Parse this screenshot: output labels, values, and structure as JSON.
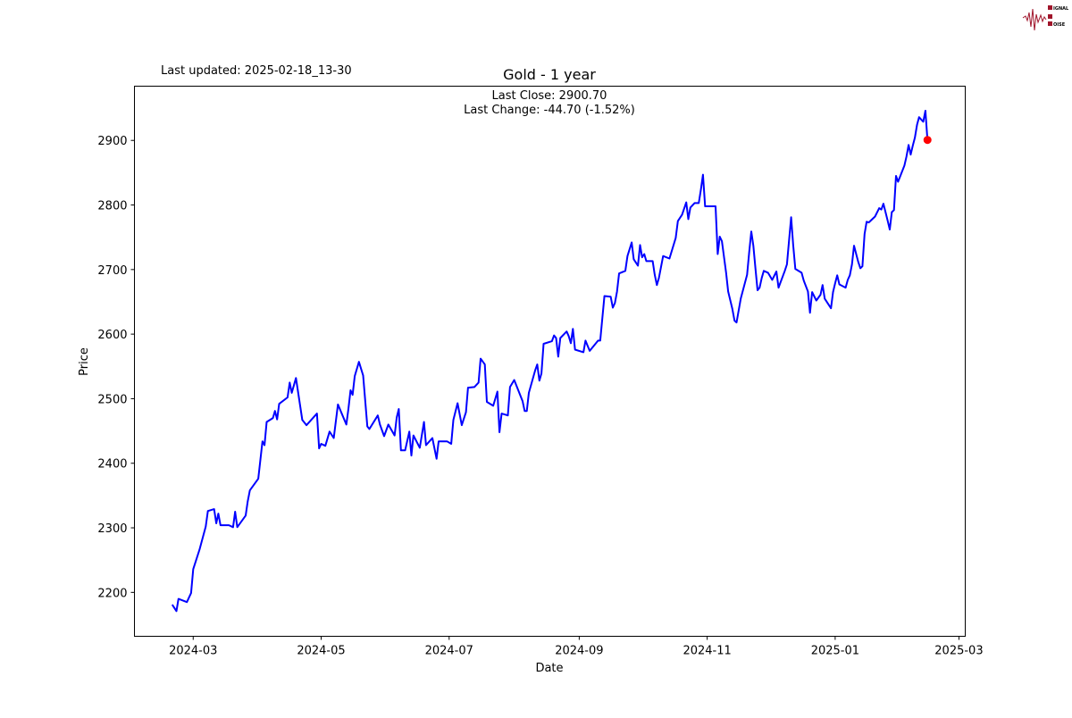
{
  "header": {
    "last_updated": "Last updated: 2025-02-18_13-30",
    "logo_text": "SIGNAL 2 NOISE"
  },
  "chart_data": {
    "type": "line",
    "title": "Gold - 1 year",
    "xlabel": "Date",
    "ylabel": "Price",
    "annotation": {
      "last_close": "Last Close: 2900.70",
      "last_change": "Last Change: -44.70 (-1.52%)"
    },
    "xlim": [
      "2024-02-02",
      "2025-03-04"
    ],
    "ylim": [
      2132,
      2984
    ],
    "x_ticks": [
      "2024-03",
      "2024-05",
      "2024-07",
      "2024-09",
      "2024-11",
      "2025-01",
      "2025-03"
    ],
    "y_ticks": [
      2200,
      2300,
      2400,
      2500,
      2600,
      2700,
      2800,
      2900
    ],
    "grid": false,
    "colors": {
      "line": "#0000ff",
      "last_point": "#ff0000"
    },
    "series": [
      {
        "x": [
          "2024-02-20",
          "2024-02-22",
          "2024-02-23",
          "2024-02-27",
          "2024-02-29",
          "2024-03-01",
          "2024-03-04",
          "2024-03-07",
          "2024-03-08",
          "2024-03-11",
          "2024-03-12",
          "2024-03-13",
          "2024-03-14",
          "2024-03-18",
          "2024-03-20",
          "2024-03-21",
          "2024-03-22",
          "2024-03-26",
          "2024-03-27",
          "2024-03-28",
          "2024-04-01",
          "2024-04-03",
          "2024-04-04",
          "2024-04-05",
          "2024-04-08",
          "2024-04-09",
          "2024-04-10",
          "2024-04-11",
          "2024-04-15",
          "2024-04-16",
          "2024-04-17",
          "2024-04-19",
          "2024-04-22",
          "2024-04-24",
          "2024-04-29",
          "2024-04-30",
          "2024-05-01",
          "2024-05-03",
          "2024-05-05",
          "2024-05-07",
          "2024-05-09",
          "2024-05-13",
          "2024-05-14",
          "2024-05-15",
          "2024-05-16",
          "2024-05-17",
          "2024-05-19",
          "2024-05-21",
          "2024-05-23",
          "2024-05-24",
          "2024-05-28",
          "2024-05-29",
          "2024-05-31",
          "2024-06-02",
          "2024-06-05",
          "2024-06-06",
          "2024-06-07",
          "2024-06-08",
          "2024-06-10",
          "2024-06-12",
          "2024-06-13",
          "2024-06-14",
          "2024-06-17",
          "2024-06-19",
          "2024-06-20",
          "2024-06-23",
          "2024-06-25",
          "2024-06-26",
          "2024-06-30",
          "2024-07-02",
          "2024-07-03",
          "2024-07-05",
          "2024-07-07",
          "2024-07-09",
          "2024-07-10",
          "2024-07-13",
          "2024-07-15",
          "2024-07-16",
          "2024-07-18",
          "2024-07-19",
          "2024-07-22",
          "2024-07-24",
          "2024-07-25",
          "2024-07-26",
          "2024-07-29",
          "2024-07-30",
          "2024-08-01",
          "2024-08-05",
          "2024-08-06",
          "2024-08-07",
          "2024-08-08",
          "2024-08-11",
          "2024-08-12",
          "2024-08-13",
          "2024-08-14",
          "2024-08-15",
          "2024-08-19",
          "2024-08-20",
          "2024-08-21",
          "2024-08-22",
          "2024-08-23",
          "2024-08-26",
          "2024-08-27",
          "2024-08-28",
          "2024-08-29",
          "2024-08-30",
          "2024-09-03",
          "2024-09-04",
          "2024-09-06",
          "2024-09-08",
          "2024-09-10",
          "2024-09-11",
          "2024-09-13",
          "2024-09-16",
          "2024-09-17",
          "2024-09-18",
          "2024-09-19",
          "2024-09-20",
          "2024-09-23",
          "2024-09-24",
          "2024-09-26",
          "2024-09-27",
          "2024-09-29",
          "2024-09-30",
          "2024-10-01",
          "2024-10-02",
          "2024-10-03",
          "2024-10-06",
          "2024-10-07",
          "2024-10-08",
          "2024-10-09",
          "2024-10-11",
          "2024-10-14",
          "2024-10-17",
          "2024-10-18",
          "2024-10-20",
          "2024-10-22",
          "2024-10-23",
          "2024-10-24",
          "2024-10-26",
          "2024-10-28",
          "2024-10-29",
          "2024-10-30",
          "2024-10-31",
          "2024-11-05",
          "2024-11-06",
          "2024-11-07",
          "2024-11-08",
          "2024-11-10",
          "2024-11-11",
          "2024-11-13",
          "2024-11-14",
          "2024-11-15",
          "2024-11-17",
          "2024-11-20",
          "2024-11-21",
          "2024-11-22",
          "2024-11-23",
          "2024-11-24",
          "2024-11-25",
          "2024-11-26",
          "2024-11-27",
          "2024-11-28",
          "2024-11-30",
          "2024-12-02",
          "2024-12-04",
          "2024-12-05",
          "2024-12-08",
          "2024-12-09",
          "2024-12-10",
          "2024-12-11",
          "2024-12-12",
          "2024-12-13",
          "2024-12-16",
          "2024-12-17",
          "2024-12-19",
          "2024-12-20",
          "2024-12-21",
          "2024-12-23",
          "2024-12-25",
          "2024-12-26",
          "2024-12-27",
          "2024-12-30",
          "2024-12-31",
          "2025-01-01",
          "2025-01-02",
          "2025-01-03",
          "2025-01-06",
          "2025-01-07",
          "2025-01-08",
          "2025-01-09",
          "2025-01-10",
          "2025-01-12",
          "2025-01-13",
          "2025-01-14",
          "2025-01-15",
          "2025-01-16",
          "2025-01-17",
          "2025-01-20",
          "2025-01-22",
          "2025-01-23",
          "2025-01-24",
          "2025-01-26",
          "2025-01-27",
          "2025-01-28",
          "2025-01-29",
          "2025-01-30",
          "2025-01-31",
          "2025-02-03",
          "2025-02-04",
          "2025-02-05",
          "2025-02-06",
          "2025-02-07",
          "2025-02-08",
          "2025-02-09",
          "2025-02-10",
          "2025-02-12",
          "2025-02-13",
          "2025-02-14"
        ],
        "y": [
          2181,
          2171,
          2190,
          2185,
          2199,
          2236,
          2266,
          2302,
          2326,
          2329,
          2307,
          2322,
          2304,
          2304,
          2301,
          2325,
          2301,
          2319,
          2341,
          2358,
          2376,
          2434,
          2428,
          2464,
          2470,
          2481,
          2468,
          2492,
          2502,
          2525,
          2509,
          2532,
          2467,
          2459,
          2477,
          2423,
          2430,
          2427,
          2449,
          2439,
          2491,
          2460,
          2484,
          2513,
          2506,
          2535,
          2557,
          2536,
          2457,
          2453,
          2474,
          2460,
          2442,
          2460,
          2443,
          2471,
          2484,
          2420,
          2420,
          2449,
          2412,
          2443,
          2424,
          2464,
          2428,
          2439,
          2407,
          2434,
          2434,
          2430,
          2467,
          2493,
          2459,
          2479,
          2517,
          2518,
          2525,
          2562,
          2553,
          2495,
          2489,
          2511,
          2448,
          2477,
          2474,
          2518,
          2529,
          2496,
          2481,
          2481,
          2509,
          2544,
          2553,
          2528,
          2539,
          2585,
          2589,
          2598,
          2594,
          2565,
          2594,
          2604,
          2597,
          2586,
          2608,
          2576,
          2572,
          2590,
          2574,
          2582,
          2590,
          2590,
          2659,
          2658,
          2641,
          2648,
          2666,
          2694,
          2698,
          2721,
          2742,
          2716,
          2706,
          2738,
          2719,
          2724,
          2713,
          2713,
          2692,
          2676,
          2687,
          2721,
          2717,
          2749,
          2775,
          2785,
          2804,
          2778,
          2796,
          2803,
          2803,
          2824,
          2847,
          2798,
          2798,
          2724,
          2751,
          2744,
          2695,
          2666,
          2639,
          2621,
          2618,
          2655,
          2692,
          2726,
          2759,
          2737,
          2701,
          2668,
          2672,
          2687,
          2698,
          2695,
          2684,
          2697,
          2672,
          2698,
          2708,
          2744,
          2781,
          2738,
          2701,
          2695,
          2683,
          2666,
          2633,
          2665,
          2652,
          2661,
          2676,
          2655,
          2640,
          2665,
          2679,
          2691,
          2677,
          2672,
          2684,
          2691,
          2708,
          2737,
          2712,
          2702,
          2705,
          2755,
          2774,
          2773,
          2782,
          2795,
          2793,
          2802,
          2776,
          2762,
          2789,
          2792,
          2845,
          2836,
          2861,
          2875,
          2893,
          2878,
          2892,
          2904,
          2924,
          2936,
          2929,
          2946,
          2900.7
        ]
      }
    ]
  }
}
